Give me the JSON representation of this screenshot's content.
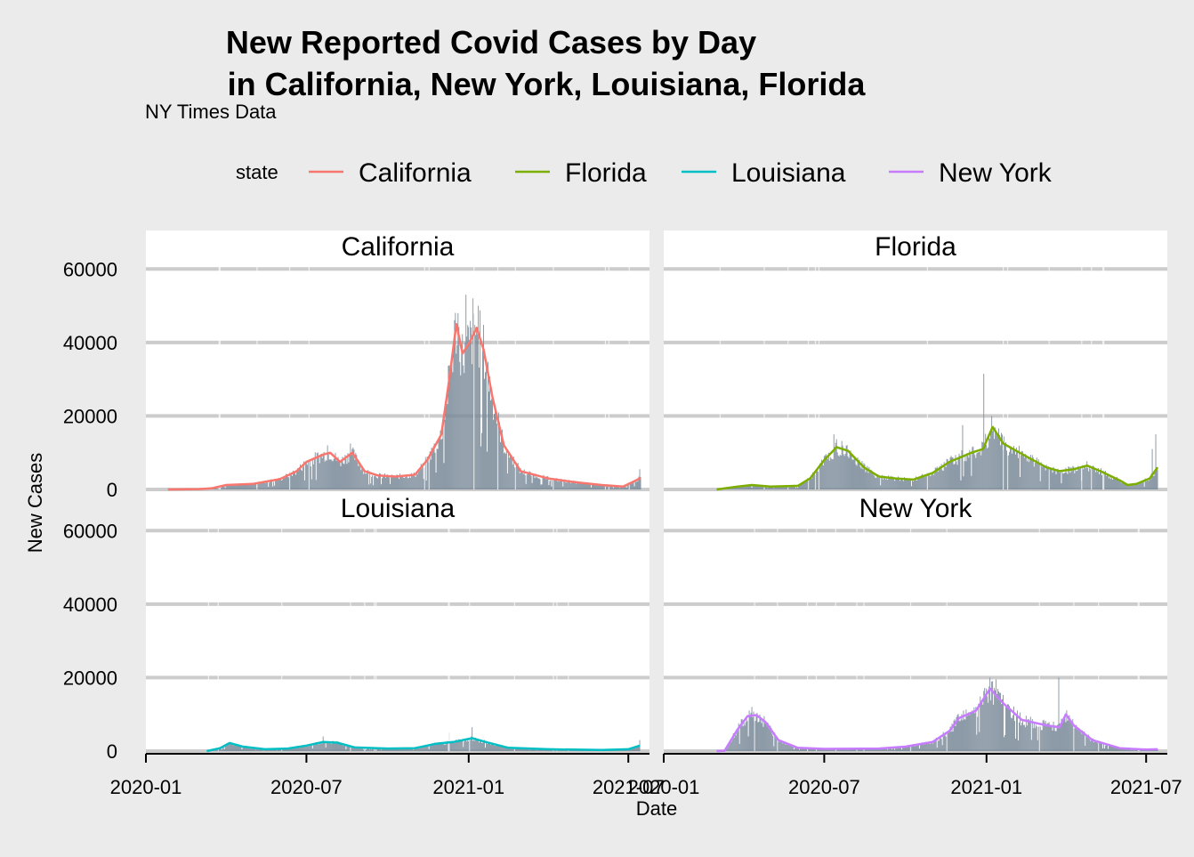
{
  "chart_data": {
    "type": "line",
    "title": "New Reported Covid Cases by Day\nin California, New York, Louisiana, Florida",
    "title_lines": [
      "New Reported Covid Cases by Day",
      "in California, New York, Louisiana, Florida"
    ],
    "subtitle": "NY Times Data",
    "xlabel": "Date",
    "ylabel": "New Cases",
    "legend_title": "state",
    "legend_position": "top",
    "ylim": [
      0,
      60000
    ],
    "y_ticks": [
      0,
      20000,
      40000,
      60000
    ],
    "y_tick_labels": [
      "0",
      "20000",
      "40000",
      "60000"
    ],
    "xlim": [
      "2020-01-01",
      "2021-07-25"
    ],
    "x_ticks": [
      "2020-01-01",
      "2020-07-01",
      "2021-01-01",
      "2021-07-01"
    ],
    "x_tick_labels": [
      "2020-01",
      "2020-07",
      "2021-01",
      "2021-07"
    ],
    "bar_color": "#7a8a99",
    "grid_color": "#cccccc",
    "panel_background": "#ffffff",
    "plot_background": "#ebebeb",
    "series": [
      {
        "name": "California",
        "color": "#f8766d",
        "line_points": [
          [
            "2020-01-26",
            0
          ],
          [
            "2020-03-01",
            100
          ],
          [
            "2020-03-15",
            300
          ],
          [
            "2020-04-01",
            1200
          ],
          [
            "2020-05-01",
            1500
          ],
          [
            "2020-06-01",
            2800
          ],
          [
            "2020-06-20",
            5000
          ],
          [
            "2020-07-01",
            7500
          ],
          [
            "2020-07-20",
            9500
          ],
          [
            "2020-07-28",
            10000
          ],
          [
            "2020-08-08",
            7500
          ],
          [
            "2020-08-22",
            10000
          ],
          [
            "2020-09-05",
            5000
          ],
          [
            "2020-09-20",
            3800
          ],
          [
            "2020-10-10",
            3500
          ],
          [
            "2020-11-01",
            4000
          ],
          [
            "2020-11-15",
            8000
          ],
          [
            "2020-12-01",
            15000
          ],
          [
            "2020-12-10",
            30000
          ],
          [
            "2020-12-18",
            45000
          ],
          [
            "2020-12-25",
            37000
          ],
          [
            "2021-01-02",
            40000
          ],
          [
            "2021-01-10",
            44000
          ],
          [
            "2021-01-18",
            38000
          ],
          [
            "2021-01-28",
            25000
          ],
          [
            "2021-02-10",
            12000
          ],
          [
            "2021-03-01",
            5000
          ],
          [
            "2021-04-01",
            3000
          ],
          [
            "2021-05-01",
            2000
          ],
          [
            "2021-06-01",
            1200
          ],
          [
            "2021-06-25",
            800
          ],
          [
            "2021-07-10",
            2500
          ],
          [
            "2021-07-15",
            3200
          ]
        ],
        "bar_peaks": [
          [
            "2020-07-25",
            12000
          ],
          [
            "2020-08-20",
            12500
          ],
          [
            "2020-12-20",
            48000
          ],
          [
            "2020-12-29",
            53000
          ],
          [
            "2021-01-06",
            52000
          ],
          [
            "2021-01-12",
            50000
          ],
          [
            "2021-07-14",
            5500
          ]
        ]
      },
      {
        "name": "Florida",
        "color": "#7cae00",
        "line_points": [
          [
            "2020-03-01",
            0
          ],
          [
            "2020-03-25",
            800
          ],
          [
            "2020-04-10",
            1200
          ],
          [
            "2020-05-01",
            800
          ],
          [
            "2020-06-01",
            1000
          ],
          [
            "2020-06-15",
            3000
          ],
          [
            "2020-07-01",
            8000
          ],
          [
            "2020-07-15",
            11500
          ],
          [
            "2020-07-28",
            10500
          ],
          [
            "2020-08-15",
            6000
          ],
          [
            "2020-09-01",
            3500
          ],
          [
            "2020-09-20",
            3000
          ],
          [
            "2020-10-10",
            2700
          ],
          [
            "2020-11-01",
            4500
          ],
          [
            "2020-11-20",
            7500
          ],
          [
            "2020-12-15",
            10000
          ],
          [
            "2020-12-28",
            11000
          ],
          [
            "2021-01-08",
            17000
          ],
          [
            "2021-01-20",
            12500
          ],
          [
            "2021-02-15",
            9000
          ],
          [
            "2021-03-10",
            6000
          ],
          [
            "2021-03-25",
            5000
          ],
          [
            "2021-04-10",
            5500
          ],
          [
            "2021-04-25",
            6500
          ],
          [
            "2021-05-10",
            5000
          ],
          [
            "2021-06-01",
            2500
          ],
          [
            "2021-06-10",
            1200
          ],
          [
            "2021-06-20",
            1500
          ],
          [
            "2021-07-05",
            3000
          ],
          [
            "2021-07-14",
            6000
          ]
        ],
        "bar_peaks": [
          [
            "2020-07-12",
            15000
          ],
          [
            "2020-12-05",
            17500
          ],
          [
            "2020-12-29",
            31500
          ],
          [
            "2021-01-07",
            20000
          ],
          [
            "2021-07-08",
            11000
          ],
          [
            "2021-07-12",
            15000
          ]
        ]
      },
      {
        "name": "Louisiana",
        "color": "#00bfc4",
        "line_points": [
          [
            "2020-03-10",
            0
          ],
          [
            "2020-03-25",
            800
          ],
          [
            "2020-04-05",
            2200
          ],
          [
            "2020-04-20",
            1200
          ],
          [
            "2020-05-15",
            500
          ],
          [
            "2020-06-10",
            700
          ],
          [
            "2020-07-01",
            1500
          ],
          [
            "2020-07-20",
            2500
          ],
          [
            "2020-08-05",
            2300
          ],
          [
            "2020-08-25",
            1000
          ],
          [
            "2020-10-01",
            700
          ],
          [
            "2020-11-01",
            800
          ],
          [
            "2020-11-25",
            2000
          ],
          [
            "2020-12-15",
            2500
          ],
          [
            "2021-01-05",
            3500
          ],
          [
            "2021-01-20",
            2500
          ],
          [
            "2021-02-15",
            900
          ],
          [
            "2021-04-01",
            500
          ],
          [
            "2021-06-01",
            300
          ],
          [
            "2021-07-01",
            500
          ],
          [
            "2021-07-14",
            1500
          ]
        ],
        "bar_peaks": [
          [
            "2020-07-20",
            4000
          ],
          [
            "2020-12-10",
            5000
          ],
          [
            "2021-01-05",
            6500
          ],
          [
            "2021-07-14",
            3000
          ]
        ]
      },
      {
        "name": "New York",
        "color": "#c77cff",
        "line_points": [
          [
            "2020-03-01",
            0
          ],
          [
            "2020-03-10",
            100
          ],
          [
            "2020-03-25",
            6000
          ],
          [
            "2020-04-05",
            9500
          ],
          [
            "2020-04-15",
            9800
          ],
          [
            "2020-04-25",
            8000
          ],
          [
            "2020-05-10",
            3000
          ],
          [
            "2020-06-01",
            900
          ],
          [
            "2020-07-01",
            600
          ],
          [
            "2020-09-01",
            700
          ],
          [
            "2020-10-01",
            1200
          ],
          [
            "2020-11-01",
            2500
          ],
          [
            "2020-11-20",
            5500
          ],
          [
            "2020-12-01",
            9000
          ],
          [
            "2020-12-20",
            11000
          ],
          [
            "2021-01-05",
            17000
          ],
          [
            "2021-01-20",
            13000
          ],
          [
            "2021-02-10",
            8500
          ],
          [
            "2021-03-10",
            7000
          ],
          [
            "2021-03-25",
            6500
          ],
          [
            "2021-04-01",
            10000
          ],
          [
            "2021-04-10",
            7000
          ],
          [
            "2021-05-01",
            3000
          ],
          [
            "2021-06-01",
            800
          ],
          [
            "2021-07-01",
            400
          ],
          [
            "2021-07-14",
            500
          ]
        ],
        "bar_peaks": [
          [
            "2020-04-10",
            12000
          ],
          [
            "2021-01-05",
            20000
          ],
          [
            "2021-01-12",
            19500
          ],
          [
            "2021-03-24",
            20000
          ]
        ]
      }
    ]
  }
}
